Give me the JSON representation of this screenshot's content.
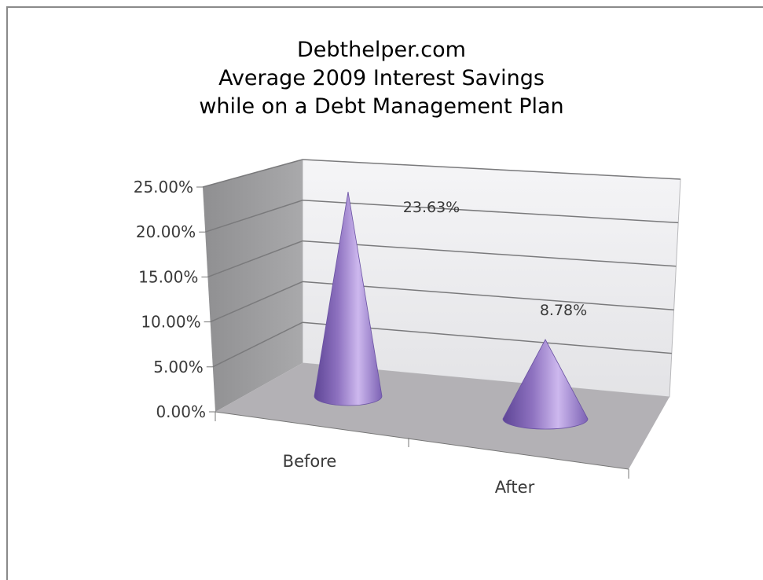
{
  "chart_data": {
    "type": "bar",
    "style": "3d-cone",
    "title_lines": [
      "Debthelper.com",
      "Average 2009 Interest Savings",
      "while on a Debt Management Plan"
    ],
    "categories": [
      "Before",
      "After"
    ],
    "values": [
      23.63,
      8.78
    ],
    "data_labels": [
      "23.63%",
      "8.78%"
    ],
    "ylim": [
      0,
      25
    ],
    "y_ticks": [
      "0.00%",
      "5.00%",
      "10.00%",
      "15.00%",
      "20.00%",
      "25.00%"
    ],
    "grid": true,
    "legend": "none",
    "colors": {
      "cone": "#9b7fc9",
      "cone_dark": "#5e4596",
      "cone_light": "#cdb8ee",
      "floor": "#b3b1b5",
      "side_wall": "#9d9d9f",
      "back_wall": "#ececee"
    }
  }
}
